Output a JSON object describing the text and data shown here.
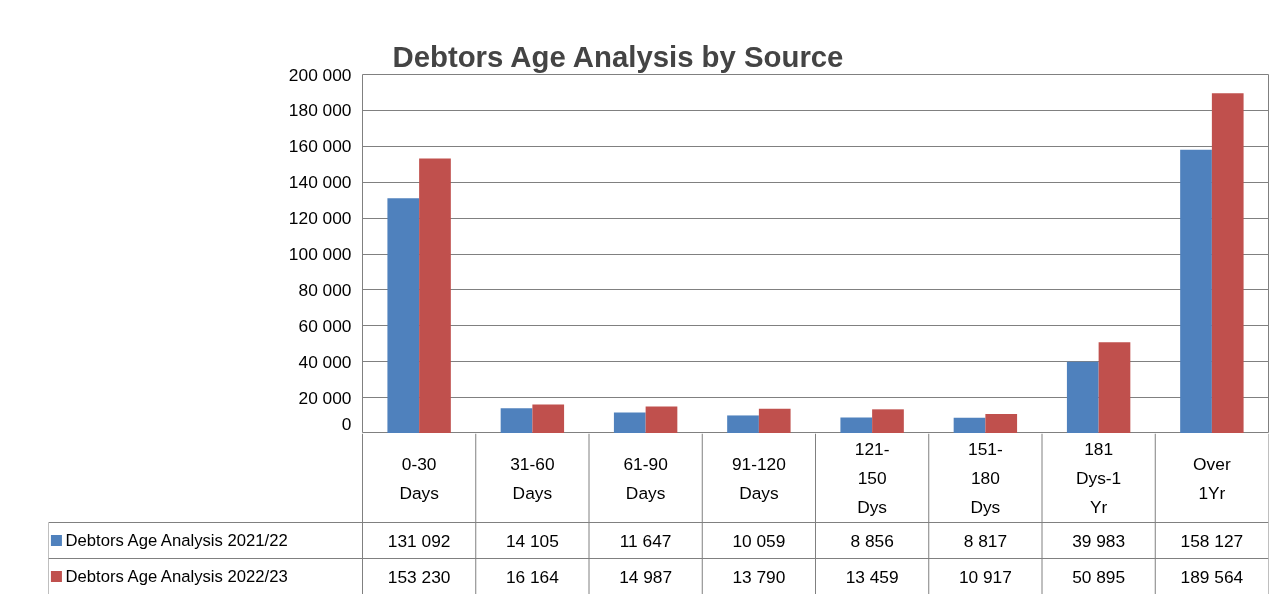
{
  "chart_data": {
    "type": "bar",
    "title": "Debtors Age Analysis by Source",
    "categories": [
      "0-30 Days",
      "31-60 Days",
      "61-90 Days",
      "91-120 Days",
      "121-150 Dys",
      "151-180 Dys",
      "181 Dys-1 Yr",
      "Over 1Yr"
    ],
    "series": [
      {
        "name": "Debtors Age Analysis 2021/22",
        "color": "#4f81bd",
        "values": [
          131092,
          14105,
          11647,
          10059,
          8856,
          8817,
          39983,
          158127
        ],
        "value_labels": [
          "131 092",
          "14 105",
          "11 647",
          "10 059",
          "8 856",
          "8 817",
          "39 983",
          "158 127"
        ]
      },
      {
        "name": "Debtors Age Analysis 2022/23",
        "color": "#c0504d",
        "values": [
          153230,
          16164,
          14987,
          13790,
          13459,
          10917,
          50895,
          189564
        ],
        "value_labels": [
          "153 230",
          "16 164",
          "14 987",
          "13 790",
          "13 459",
          "10 917",
          "50 895",
          "189 564"
        ]
      }
    ],
    "ylim": [
      0,
      200000
    ],
    "yticks": [
      0,
      {
        "value": 20000,
        "label": "20 000"
      },
      {
        "value": 40000,
        "label": "40 000"
      },
      {
        "value": 60000,
        "label": "60 000"
      },
      {
        "value": 80000,
        "label": "80 000"
      },
      {
        "value": 100000,
        "label": "100 000"
      },
      {
        "value": 120000,
        "label": "120 000"
      },
      {
        "value": 140000,
        "label": "140 000"
      },
      {
        "value": 160000,
        "label": "160 000"
      },
      {
        "value": 180000,
        "label": "180 000"
      },
      {
        "value": 200000,
        "label": "200 000"
      }
    ],
    "grid": "y",
    "legend": "bottom"
  }
}
